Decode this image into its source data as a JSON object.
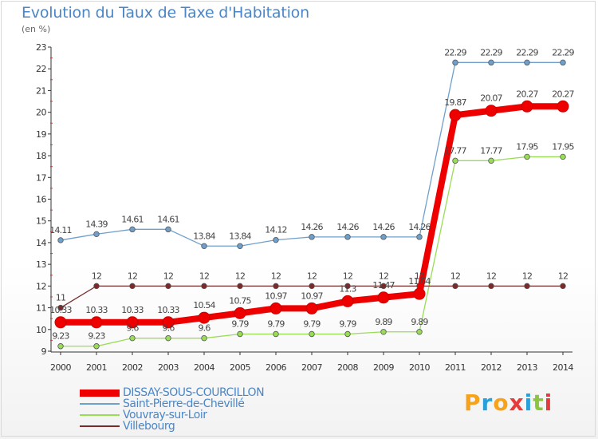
{
  "page": {
    "title": "Evolution du Taux de Taxe d'Habitation",
    "unit": "(en %)"
  },
  "chart_data": {
    "type": "line",
    "title": "Evolution du Taux de Taxe d'Habitation",
    "ylabel": "(en %)",
    "xlabel": "",
    "ylim": [
      9,
      23
    ],
    "yticks": [
      9,
      10,
      11,
      12,
      13,
      14,
      15,
      16,
      17,
      18,
      19,
      20,
      21,
      22,
      23
    ],
    "x": [
      "2000",
      "2001",
      "2002",
      "2003",
      "2004",
      "2005",
      "2006",
      "2007",
      "2008",
      "2009",
      "2010",
      "2011",
      "2012",
      "2013",
      "2014"
    ],
    "grid": false,
    "legend_position": "bottom-left",
    "series": [
      {
        "name": "DISSAY-SOUS-COURCILLON",
        "color": "#ee0000",
        "highlight": true,
        "values": [
          10.33,
          10.33,
          10.33,
          10.33,
          10.54,
          10.75,
          10.97,
          10.97,
          11.3,
          11.47,
          11.64,
          19.87,
          20.07,
          20.27,
          20.27
        ],
        "labels": [
          "10.33",
          "10.33",
          "10.33",
          "10.33",
          "10.54",
          "10.75",
          "10.97",
          "10.97",
          "11.3",
          "11.47",
          "11.64",
          "19.87",
          "20.07",
          "20.27",
          "20.27"
        ]
      },
      {
        "name": "Saint-Pierre-de-Chevillé",
        "color": "#6fa0cc",
        "highlight": false,
        "values": [
          14.11,
          14.39,
          14.61,
          14.61,
          13.84,
          13.84,
          14.12,
          14.26,
          14.26,
          14.26,
          14.26,
          22.29,
          22.29,
          22.29,
          22.29
        ],
        "labels": [
          "14.11",
          "14.39",
          "14.61",
          "14.61",
          "13.84",
          "13.84",
          "14.12",
          "14.26",
          "14.26",
          "14.26",
          "14.26",
          "22.29",
          "22.29",
          "22.29",
          "22.29"
        ]
      },
      {
        "name": "Vouvray-sur-Loir",
        "color": "#99dd55",
        "highlight": false,
        "values": [
          9.23,
          9.23,
          9.6,
          9.6,
          9.6,
          9.79,
          9.79,
          9.79,
          9.79,
          9.89,
          9.89,
          17.77,
          17.77,
          17.95,
          17.95
        ],
        "labels": [
          "9.23",
          "9.23",
          "9.6",
          "9.6",
          "9.6",
          "9.79",
          "9.79",
          "9.79",
          "9.79",
          "9.89",
          "9.89",
          "17.77",
          "17.77",
          "17.95",
          "17.95"
        ]
      },
      {
        "name": "Villebourg",
        "color": "#7a2a2a",
        "highlight": false,
        "values": [
          11,
          12,
          12,
          12,
          12,
          12,
          12,
          12,
          12,
          12,
          12,
          12,
          12,
          12,
          12
        ],
        "labels": [
          "11",
          "12",
          "12",
          "12",
          "12",
          "12",
          "12",
          "12",
          "12",
          "12",
          "12",
          "12",
          "12",
          "12",
          "12"
        ]
      }
    ]
  },
  "logo": {
    "text": "Proxiti",
    "letters": [
      "P",
      "r",
      "o",
      "x",
      "i",
      "t",
      "i"
    ],
    "colors": [
      "#f7a21b",
      "#2aa0d8",
      "#f7a21b",
      "#e53b3b",
      "#2aa0d8",
      "#8cc63f",
      "#e53b3b"
    ]
  }
}
